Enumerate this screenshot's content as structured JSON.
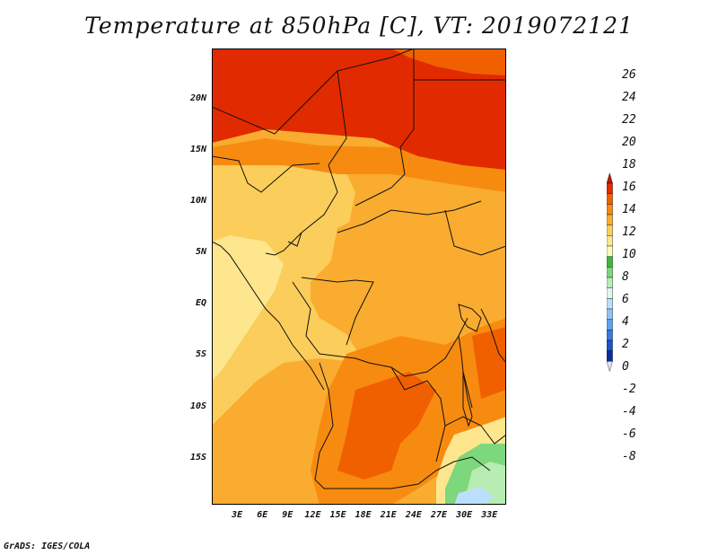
{
  "title": "Temperature at 850hPa [C], VT: 2019072121",
  "credit": "GrADS: IGES/COLA",
  "map": {
    "lat_labels": [
      "20N",
      "15N",
      "10N",
      "5N",
      "EQ",
      "5S",
      "10S",
      "15S"
    ],
    "lat_values": [
      20,
      15,
      10,
      5,
      0,
      -5,
      -10,
      -15
    ],
    "lon_labels": [
      "3E",
      "6E",
      "9E",
      "12E",
      "15E",
      "18E",
      "21E",
      "24E",
      "27E",
      "30E",
      "33E"
    ],
    "lon_values": [
      3,
      6,
      9,
      12,
      15,
      18,
      21,
      24,
      27,
      30,
      33
    ],
    "lat_range": [
      -19.5,
      25
    ],
    "lon_range": [
      0,
      35
    ]
  },
  "colorbar": {
    "labels": [
      "26",
      "24",
      "22",
      "20",
      "18",
      "16",
      "14",
      "12",
      "10",
      "8",
      "6",
      "4",
      "2",
      "0",
      "-2",
      "-4",
      "-6",
      "-8"
    ],
    "colors": [
      "#c11600",
      "#e22a00",
      "#f06000",
      "#f78b10",
      "#f9ac2f",
      "#fbcd5a",
      "#fde68d",
      "#fbfbba",
      "#3cb93c",
      "#7dd77d",
      "#b7ecb3",
      "#e0f6ee",
      "#bcdffb",
      "#8ec3f7",
      "#5ea2ef",
      "#3a78e2",
      "#1e52cf",
      "#0b2d9f",
      "#061a6a",
      "#e4e6f8"
    ]
  }
}
